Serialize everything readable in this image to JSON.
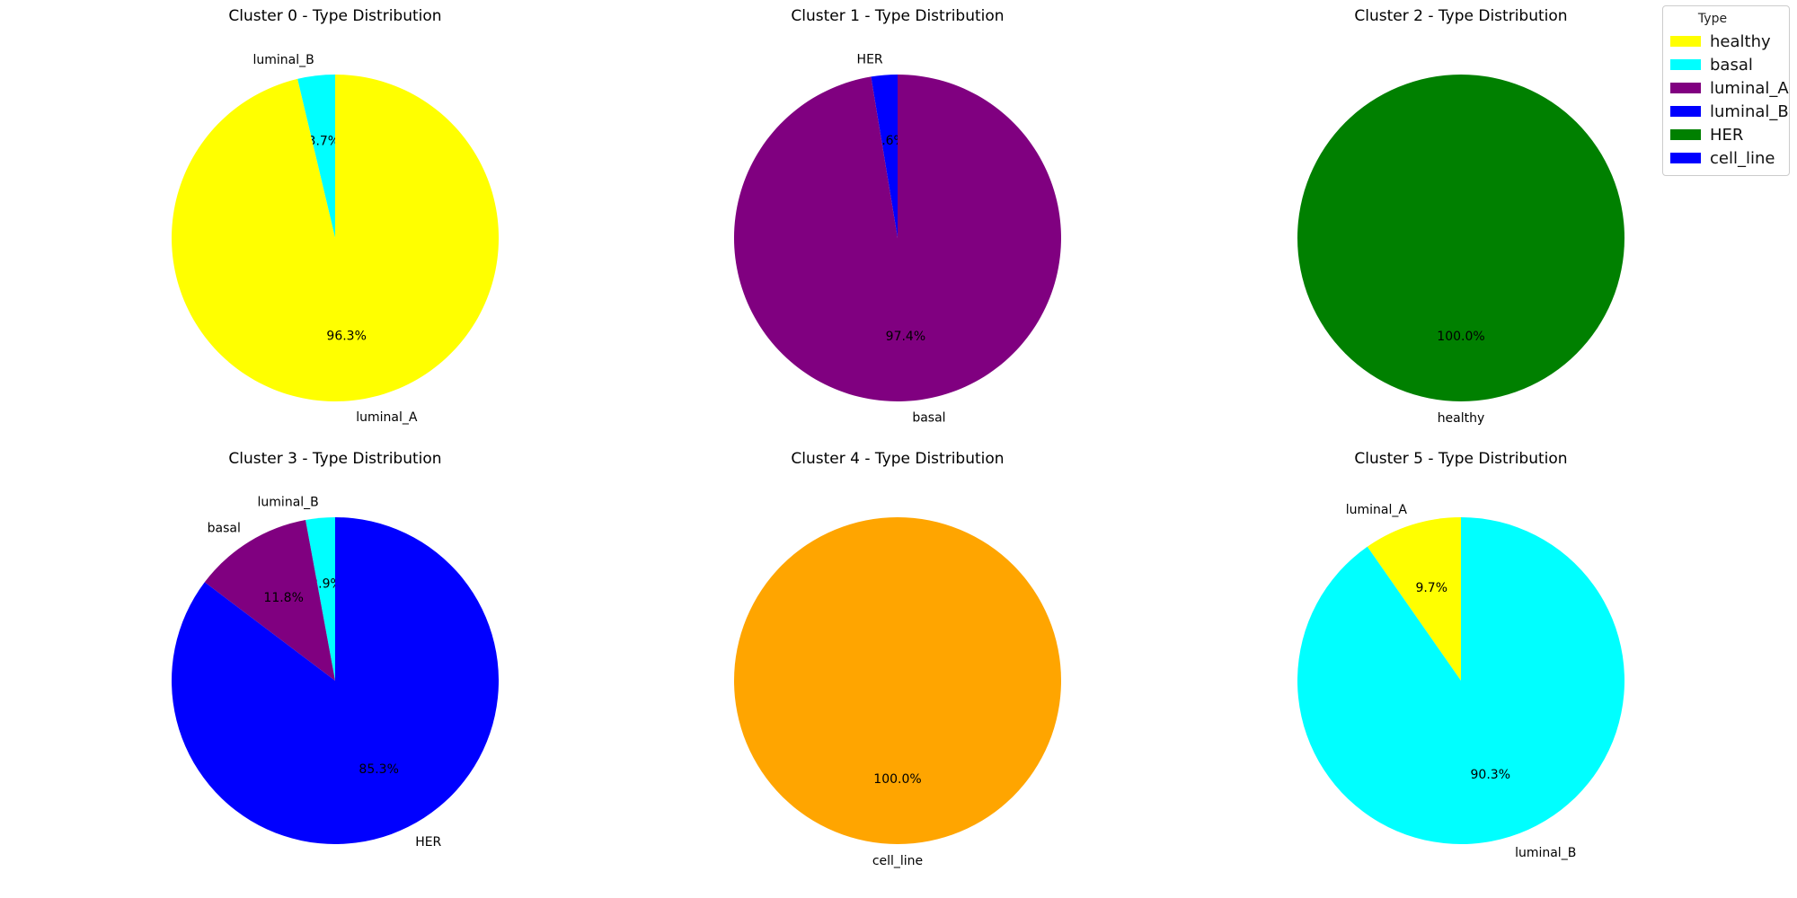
{
  "legend": {
    "title": "Type",
    "entries": [
      {
        "label": "healthy",
        "color": "#ffff00"
      },
      {
        "label": "basal",
        "color": "#00ffff"
      },
      {
        "label": "luminal_A",
        "color": "#800080"
      },
      {
        "label": "luminal_B",
        "color": "#0000ff"
      },
      {
        "label": "HER",
        "color": "#008000"
      },
      {
        "label": "cell_line",
        "color": "#0000ff"
      }
    ]
  },
  "chart_data": [
    {
      "type": "pie",
      "title": "Cluster 0 - Type Distribution",
      "slices": [
        {
          "label": "luminal_B",
          "value": 3.7,
          "pct_label": "3.7%",
          "color": "#00ffff"
        },
        {
          "label": "luminal_A",
          "value": 96.3,
          "pct_label": "96.3%",
          "color": "#ffff00"
        }
      ]
    },
    {
      "type": "pie",
      "title": "Cluster 1 - Type Distribution",
      "slices": [
        {
          "label": "HER",
          "value": 2.6,
          "pct_label": "2.6%",
          "color": "#0000ff"
        },
        {
          "label": "basal",
          "value": 97.4,
          "pct_label": "97.4%",
          "color": "#800080"
        }
      ]
    },
    {
      "type": "pie",
      "title": "Cluster 2 - Type Distribution",
      "slices": [
        {
          "label": "healthy",
          "value": 100.0,
          "pct_label": "100.0%",
          "color": "#008000"
        }
      ]
    },
    {
      "type": "pie",
      "title": "Cluster 3 - Type Distribution",
      "slices": [
        {
          "label": "luminal_B",
          "value": 2.9,
          "pct_label": "2.9%",
          "color": "#00ffff"
        },
        {
          "label": "basal",
          "value": 11.8,
          "pct_label": "11.8%",
          "color": "#800080"
        },
        {
          "label": "HER",
          "value": 85.3,
          "pct_label": "85.3%",
          "color": "#0000ff"
        }
      ]
    },
    {
      "type": "pie",
      "title": "Cluster 4 - Type Distribution",
      "slices": [
        {
          "label": "cell_line",
          "value": 100.0,
          "pct_label": "100.0%",
          "color": "#ffa500"
        }
      ]
    },
    {
      "type": "pie",
      "title": "Cluster 5 - Type Distribution",
      "slices": [
        {
          "label": "luminal_A",
          "value": 9.7,
          "pct_label": "9.7%",
          "color": "#ffff00"
        },
        {
          "label": "luminal_B",
          "value": 90.3,
          "pct_label": "90.3%",
          "color": "#00ffff"
        }
      ]
    }
  ]
}
